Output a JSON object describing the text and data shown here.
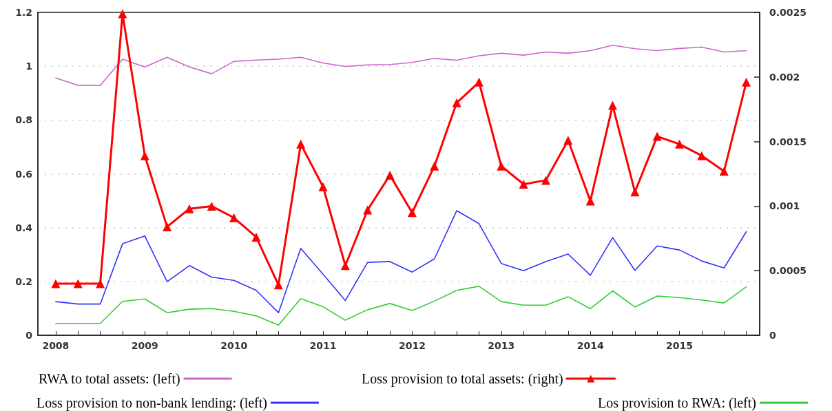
{
  "chart_data": {
    "type": "line",
    "x": [
      2008,
      2008.25,
      2008.5,
      2008.75,
      2009,
      2009.25,
      2009.5,
      2009.75,
      2010,
      2010.25,
      2010.5,
      2010.75,
      2011,
      2011.25,
      2011.5,
      2011.75,
      2012,
      2012.25,
      2012.5,
      2012.75,
      2013,
      2013.25,
      2013.5,
      2013.75,
      2014,
      2014.25,
      2014.5,
      2014.75,
      2015,
      2015.25,
      2015.5,
      2015.75
    ],
    "series": [
      {
        "name": "RWA to total assets: (left)",
        "color": "#cc66cc",
        "values": [
          0.956,
          0.929,
          0.929,
          1.026,
          0.997,
          1.033,
          0.997,
          0.972,
          1.018,
          1.023,
          1.026,
          1.033,
          1.012,
          0.999,
          1.005,
          1.006,
          1.014,
          1.029,
          1.022,
          1.039,
          1.048,
          1.041,
          1.053,
          1.048,
          1.058,
          1.078,
          1.065,
          1.058,
          1.066,
          1.071,
          1.053,
          1.058
        ]
      },
      {
        "name": "Loss provision to total assets: (right)",
        "color": "#ff0000",
        "axis": "y2",
        "marker": "triangle",
        "values": [
          0.0004,
          0.0004,
          0.0004,
          0.00249,
          0.00139,
          0.00084,
          0.00098,
          0.001,
          0.00091,
          0.00076,
          0.00039,
          0.00148,
          0.00115,
          0.00054,
          0.00097,
          0.00124,
          0.00095,
          0.00131,
          0.0018,
          0.00196,
          0.00131,
          0.00117,
          0.0012,
          0.00151,
          0.00104,
          0.00178,
          0.00111,
          0.00154,
          0.00148,
          0.00139,
          0.00127,
          0.00196
        ]
      },
      {
        "name": "Loss provision to non-bank lending: (left)",
        "color": "#3333ff",
        "values": [
          0.125,
          0.116,
          0.116,
          0.34,
          0.369,
          0.199,
          0.259,
          0.216,
          0.204,
          0.167,
          0.084,
          0.323,
          0.227,
          0.129,
          0.271,
          0.274,
          0.235,
          0.284,
          0.463,
          0.415,
          0.267,
          0.24,
          0.274,
          0.302,
          0.223,
          0.363,
          0.241,
          0.332,
          0.317,
          0.276,
          0.25,
          0.385
        ]
      },
      {
        "name": "Los provision to RWA: (left)",
        "color": "#33cc33",
        "values": [
          0.044,
          0.044,
          0.044,
          0.126,
          0.135,
          0.084,
          0.097,
          0.099,
          0.089,
          0.072,
          0.038,
          0.136,
          0.106,
          0.056,
          0.095,
          0.118,
          0.092,
          0.127,
          0.167,
          0.182,
          0.125,
          0.112,
          0.112,
          0.143,
          0.099,
          0.165,
          0.105,
          0.146,
          0.14,
          0.131,
          0.12,
          0.18
        ]
      }
    ],
    "xlim": [
      2007.8,
      2015.9
    ],
    "xticks": [
      2008,
      {
        "value": 2008.25,
        "label": null
      },
      {
        "value": 2008.5,
        "label": null
      },
      {
        "value": 2008.75,
        "label": null
      },
      2009,
      {
        "value": 2009.25,
        "label": null
      },
      {
        "value": 2009.5,
        "label": null
      },
      {
        "value": 2009.75,
        "label": null
      },
      2010,
      {
        "value": 2010.25,
        "label": null
      },
      {
        "value": 2010.5,
        "label": null
      },
      {
        "value": 2010.75,
        "label": null
      },
      2011,
      {
        "value": 2011.25,
        "label": null
      },
      {
        "value": 2011.5,
        "label": null
      },
      {
        "value": 2011.75,
        "label": null
      },
      2012,
      {
        "value": 2012.25,
        "label": null
      },
      {
        "value": 2012.5,
        "label": null
      },
      {
        "value": 2012.75,
        "label": null
      },
      2013,
      {
        "value": 2013.25,
        "label": null
      },
      {
        "value": 2013.5,
        "label": null
      },
      {
        "value": 2013.75,
        "label": null
      },
      2014,
      {
        "value": 2014.25,
        "label": null
      },
      {
        "value": 2014.5,
        "label": null
      },
      {
        "value": 2014.75,
        "label": null
      },
      2015,
      {
        "value": 2015.25,
        "label": null
      },
      {
        "value": 2015.5,
        "label": null
      },
      {
        "value": 2015.75,
        "label": null
      }
    ],
    "ylim": [
      0,
      1.2
    ],
    "yticks": [
      0,
      0.2,
      0.4,
      0.6,
      0.8,
      1,
      1.2
    ],
    "y2lim": [
      0,
      0.0025
    ],
    "y2ticks": [
      0,
      0.0005,
      0.001,
      0.0015,
      0.002,
      0.0025
    ],
    "grid": "y",
    "legend": "bottom",
    "marker": "none"
  }
}
